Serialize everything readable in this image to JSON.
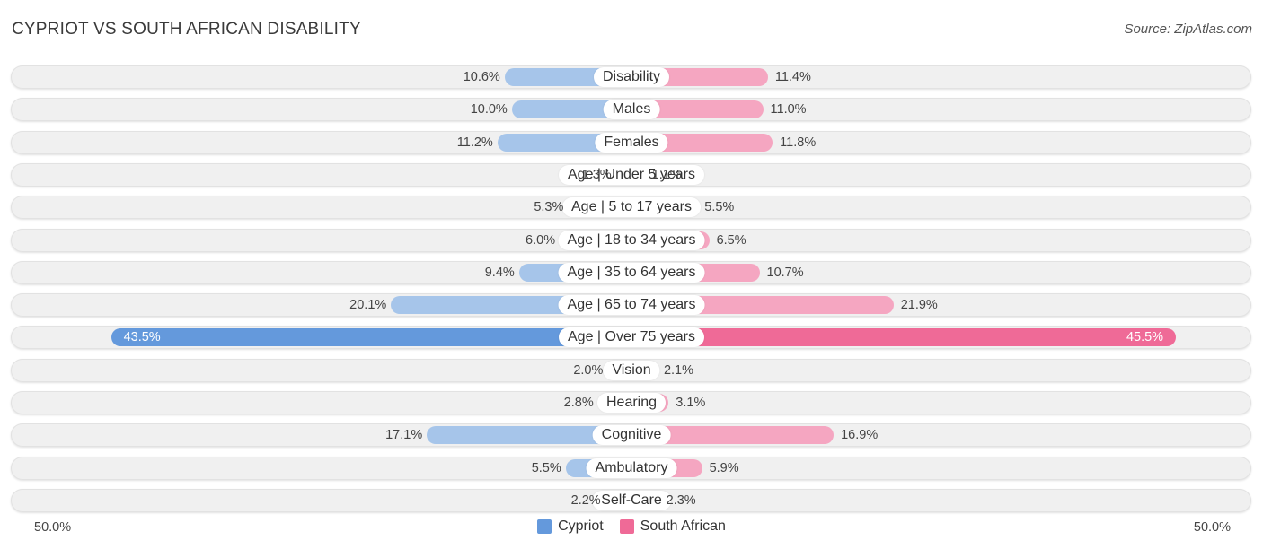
{
  "header": {
    "title": "CYPRIOT VS SOUTH AFRICAN DISABILITY",
    "source": "Source: ZipAtlas.com"
  },
  "colors": {
    "left_light": "#a6c5ea",
    "left_strong": "#6499dc",
    "right_light": "#f5a6c1",
    "right_strong": "#ef6a97",
    "track": "#f0f0f0"
  },
  "chart_data": {
    "type": "bar",
    "title": "CYPRIOT VS SOUTH AFRICAN DISABILITY",
    "orientation": "horizontal-diverging",
    "axis_max": 50.0,
    "axis_left_label": "50.0%",
    "axis_right_label": "50.0%",
    "categories": [
      "Disability",
      "Males",
      "Females",
      "Age | Under 5 years",
      "Age | 5 to 17 years",
      "Age | 18 to 34 years",
      "Age | 35 to 64 years",
      "Age | 65 to 74 years",
      "Age | Over 75 years",
      "Vision",
      "Hearing",
      "Cognitive",
      "Ambulatory",
      "Self-Care"
    ],
    "series": [
      {
        "name": "Cypriot",
        "side": "left",
        "values": [
          10.6,
          10.0,
          11.2,
          1.3,
          5.3,
          6.0,
          9.4,
          20.1,
          43.5,
          2.0,
          2.8,
          17.1,
          5.5,
          2.2
        ],
        "labels": [
          "10.6%",
          "10.0%",
          "11.2%",
          "1.3%",
          "5.3%",
          "6.0%",
          "9.4%",
          "20.1%",
          "43.5%",
          "2.0%",
          "2.8%",
          "17.1%",
          "5.5%",
          "2.2%"
        ]
      },
      {
        "name": "South African",
        "side": "right",
        "values": [
          11.4,
          11.0,
          11.8,
          1.1,
          5.5,
          6.5,
          10.7,
          21.9,
          45.5,
          2.1,
          3.1,
          16.9,
          5.9,
          2.3
        ],
        "labels": [
          "11.4%",
          "11.0%",
          "11.8%",
          "1.1%",
          "5.5%",
          "6.5%",
          "10.7%",
          "21.9%",
          "45.5%",
          "2.1%",
          "3.1%",
          "16.9%",
          "5.9%",
          "2.3%"
        ]
      }
    ],
    "legend": [
      "Cypriot",
      "South African"
    ],
    "legend_position": "bottom-center"
  }
}
